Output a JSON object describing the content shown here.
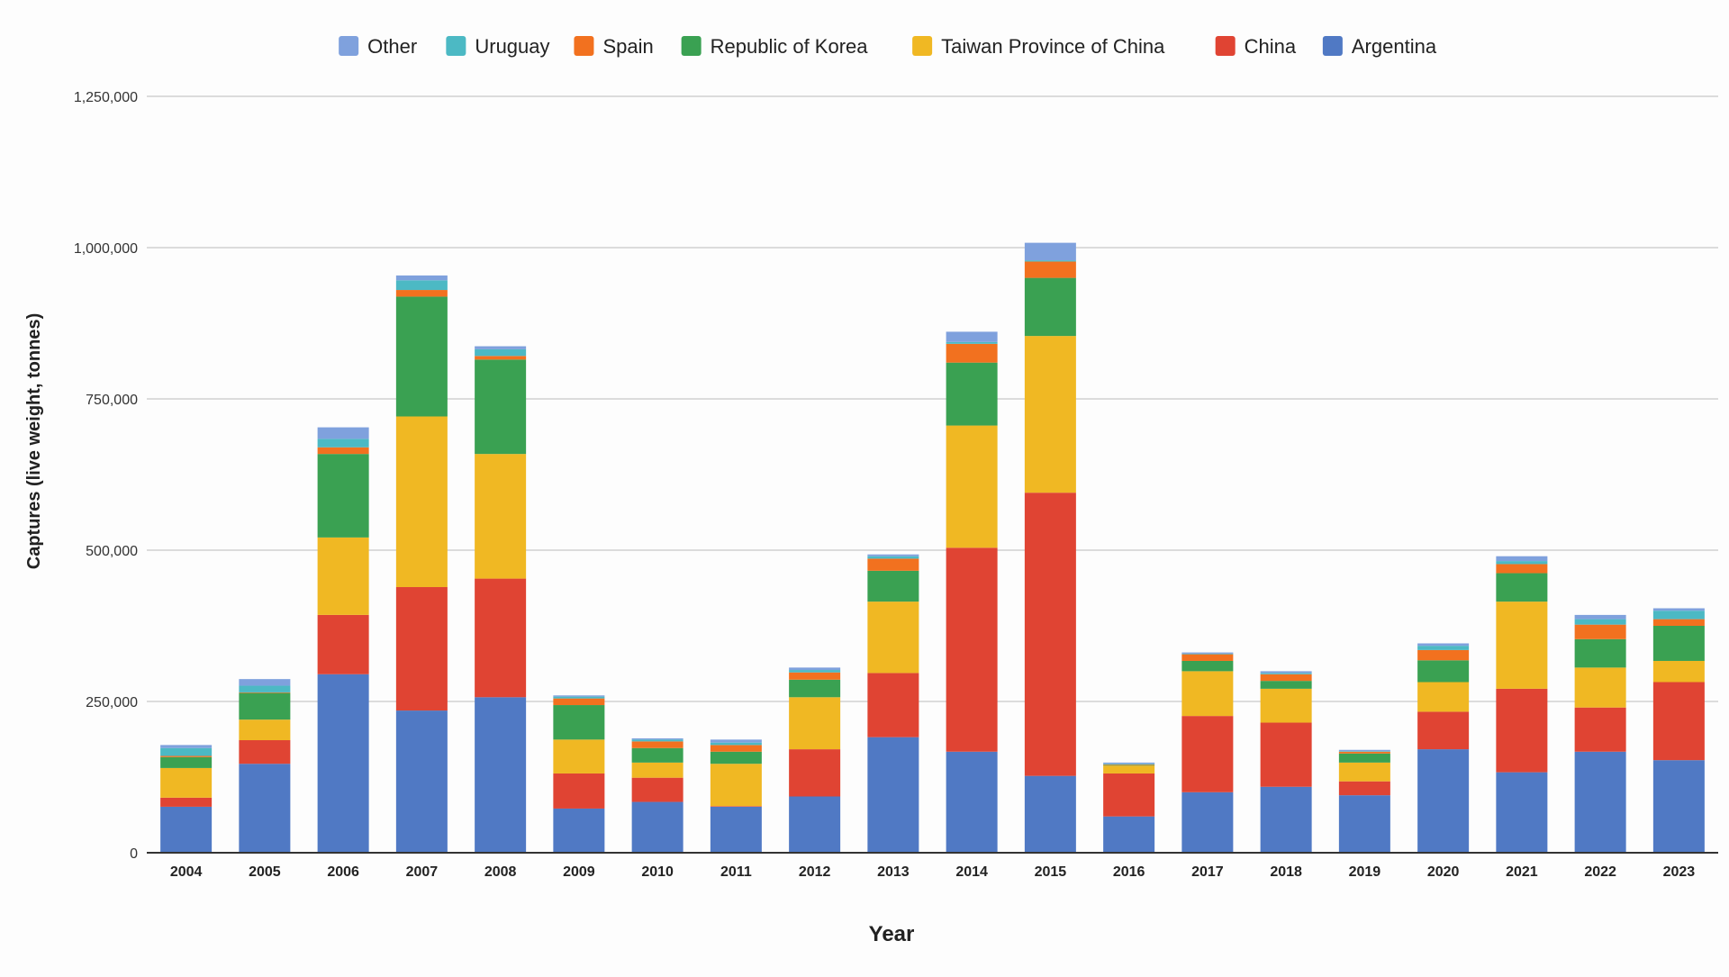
{
  "chart_data": {
    "type": "bar",
    "stacked": true,
    "title": "",
    "xlabel": "Year",
    "ylabel": "Captures (live weight, tonnes)",
    "ylim": [
      0,
      1250000
    ],
    "yticks": [
      0,
      250000,
      500000,
      750000,
      1000000,
      1250000
    ],
    "ytick_labels": [
      "0",
      "250,000",
      "500,000",
      "750,000",
      "1,000,000",
      "1,250,000"
    ],
    "grid": true,
    "legend_position": "top",
    "categories": [
      "2004",
      "2005",
      "2006",
      "2007",
      "2008",
      "2009",
      "2010",
      "2011",
      "2012",
      "2013",
      "2014",
      "2015",
      "2016",
      "2017",
      "2018",
      "2019",
      "2020",
      "2021",
      "2022",
      "2023"
    ],
    "series": [
      {
        "name": "Argentina",
        "color": "#5079c4",
        "values": [
          76000,
          147000,
          295000,
          235000,
          257000,
          73000,
          84000,
          76000,
          93000,
          191000,
          167000,
          127000,
          60000,
          100000,
          109000,
          95000,
          171000,
          133000,
          167000,
          153000
        ]
      },
      {
        "name": "China",
        "color": "#e04433",
        "values": [
          15000,
          39000,
          98000,
          204000,
          196000,
          58000,
          40000,
          1000,
          78000,
          106000,
          337000,
          468000,
          71000,
          126000,
          106000,
          23000,
          62000,
          138000,
          73000,
          129000
        ]
      },
      {
        "name": "Taiwan Province of China",
        "color": "#f0b823",
        "values": [
          49000,
          34000,
          128000,
          282000,
          206000,
          56000,
          25000,
          70000,
          86000,
          118000,
          202000,
          259000,
          13000,
          74000,
          56000,
          31000,
          49000,
          144000,
          66000,
          35000
        ]
      },
      {
        "name": "Republic of Korea",
        "color": "#3aa152",
        "values": [
          18000,
          44000,
          138000,
          198000,
          156000,
          57000,
          24000,
          20000,
          29000,
          51000,
          104000,
          96000,
          1000,
          17000,
          13000,
          15000,
          36000,
          47000,
          47000,
          58000
        ]
      },
      {
        "name": "Spain",
        "color": "#f2711f",
        "values": [
          2000,
          1000,
          11000,
          11000,
          6000,
          11000,
          11000,
          11000,
          12000,
          20000,
          31000,
          27000,
          1000,
          11000,
          11000,
          3000,
          17000,
          15000,
          24000,
          11000
        ]
      },
      {
        "name": "Uruguay",
        "color": "#4cb9c4",
        "values": [
          13000,
          11000,
          14000,
          16000,
          11000,
          3000,
          3000,
          4000,
          4000,
          4000,
          3000,
          2000,
          1000,
          1000,
          2000,
          1000,
          7000,
          5000,
          9000,
          14000
        ]
      },
      {
        "name": "Other",
        "color": "#7fa1dd",
        "values": [
          5000,
          11000,
          19000,
          8000,
          5000,
          2000,
          2000,
          5000,
          4000,
          3000,
          17000,
          29000,
          2000,
          2000,
          3000,
          2000,
          4000,
          8000,
          7000,
          4000
        ]
      }
    ],
    "legend_order": [
      "Other",
      "Uruguay",
      "Spain",
      "Republic of Korea",
      "Taiwan Province of China",
      "China",
      "Argentina"
    ]
  }
}
